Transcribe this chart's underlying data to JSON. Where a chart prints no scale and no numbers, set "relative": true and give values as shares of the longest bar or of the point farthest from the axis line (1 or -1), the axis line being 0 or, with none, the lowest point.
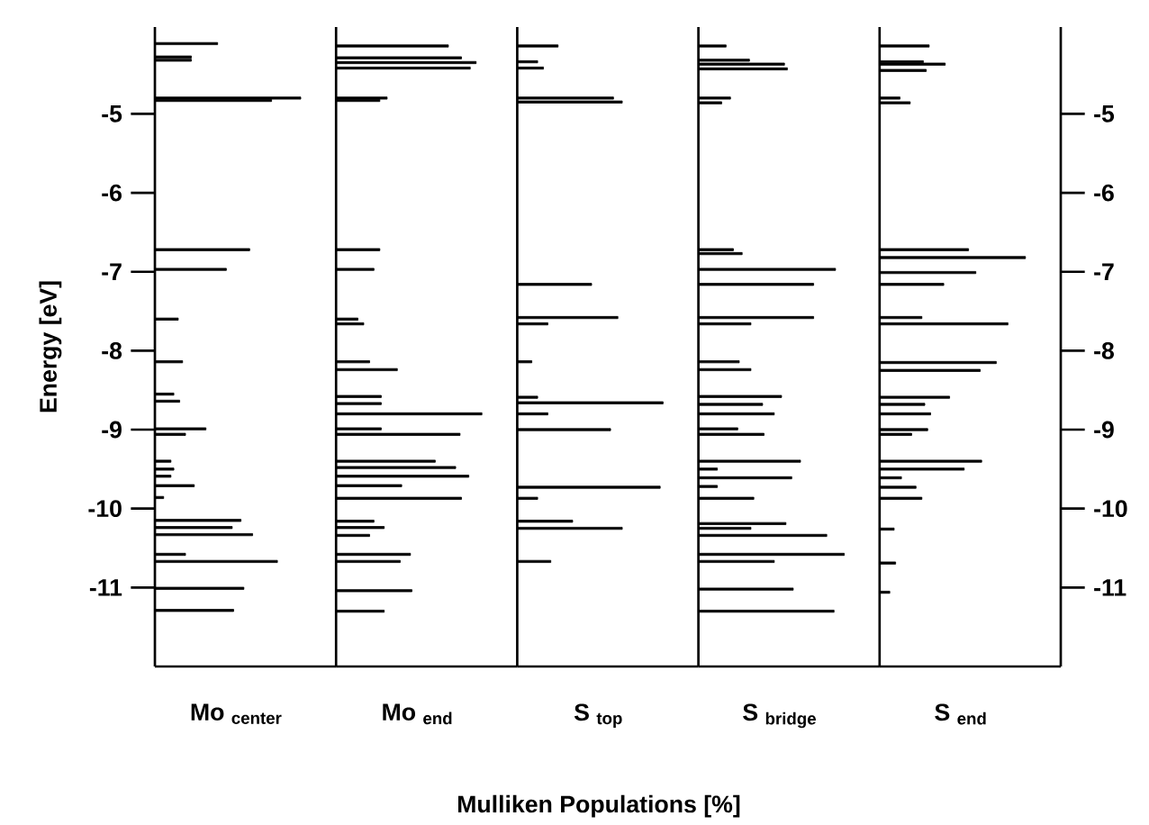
{
  "chart_data": [
    {
      "type": "bar",
      "orientation": "horizontal",
      "relative": true,
      "ylabel": "Energy [eV]",
      "ylim": [
        -12,
        -3.9
      ],
      "yticks": [
        -5,
        -6,
        -7,
        -8,
        -9,
        -10,
        -11
      ],
      "tick_labels": "y",
      "series": [
        {
          "name": "Mo $_{center}$",
          "color": "#000000",
          "x": [
            -4.11,
            -4.28,
            -4.32,
            -4.8,
            -4.83,
            -6.72,
            -6.97,
            -7.6,
            -8.14,
            -8.55,
            -8.64,
            -8.99,
            -9.06,
            -9.4,
            -9.5,
            -9.59,
            -9.71,
            -9.86,
            -10.15,
            -10.24,
            -10.33,
            -10.58,
            -10.67,
            -11.01,
            -11.29
          ],
          "values": [
            0.43,
            0.25,
            0.25,
            1,
            0.8,
            0.65,
            0.49,
            0.16,
            0.19,
            0.13,
            0.17,
            0.35,
            0.21,
            0.11,
            0.13,
            0.11,
            0.27,
            0.06,
            0.59,
            0.53,
            0.67,
            0.21,
            0.84,
            0.61,
            0.54
          ]
        }
      ]
    },
    {
      "type": "bar",
      "orientation": "horizontal",
      "relative": true,
      "ylim": [
        -12,
        -3.9
      ],
      "tick_labels": false,
      "series": [
        {
          "name": "Mo $_{end}$",
          "color": "#000000",
          "x": [
            -4.14,
            -4.29,
            -4.35,
            -4.42,
            -4.8,
            -4.83,
            -6.72,
            -6.97,
            -7.6,
            -7.66,
            -8.14,
            -8.24,
            -8.58,
            -8.67,
            -8.8,
            -8.99,
            -9.06,
            -9.4,
            -9.48,
            -9.59,
            -9.71,
            -9.87,
            -10.16,
            -10.24,
            -10.34,
            -10.58,
            -10.67,
            -11.04,
            -11.3
          ],
          "values": [
            0.77,
            0.86,
            0.96,
            0.92,
            0.35,
            0.3,
            0.3,
            0.26,
            0.15,
            0.19,
            0.23,
            0.42,
            0.31,
            0.31,
            1,
            0.31,
            0.85,
            0.68,
            0.82,
            0.91,
            0.45,
            0.86,
            0.26,
            0.33,
            0.23,
            0.51,
            0.44,
            0.52,
            0.33
          ]
        }
      ]
    },
    {
      "type": "bar",
      "orientation": "horizontal",
      "relative": true,
      "xlabel": "Mulliken Populations [%]",
      "ylim": [
        -12,
        -3.9
      ],
      "tick_labels": false,
      "series": [
        {
          "name": "S $_{top}$",
          "color": "#000000",
          "x": [
            -4.14,
            -4.34,
            -4.42,
            -4.8,
            -4.85,
            -7.16,
            -7.58,
            -7.66,
            -8.14,
            -8.59,
            -8.66,
            -8.8,
            -9.0,
            -9.73,
            -9.87,
            -10.16,
            -10.25,
            -10.67
          ],
          "values": [
            0.28,
            0.14,
            0.18,
            0.66,
            0.72,
            0.51,
            0.69,
            0.21,
            0.1,
            0.14,
            1,
            0.21,
            0.64,
            0.98,
            0.14,
            0.38,
            0.72,
            0.23
          ]
        }
      ]
    },
    {
      "type": "bar",
      "orientation": "horizontal",
      "relative": true,
      "ylim": [
        -12,
        -3.9
      ],
      "tick_labels": false,
      "series": [
        {
          "name": "S $_{bridge}$",
          "color": "#000000",
          "x": [
            -4.14,
            -4.32,
            -4.37,
            -4.43,
            -4.8,
            -4.86,
            -6.72,
            -6.77,
            -6.97,
            -7.16,
            -7.58,
            -7.66,
            -8.14,
            -8.24,
            -8.58,
            -8.68,
            -8.8,
            -8.99,
            -9.06,
            -9.4,
            -9.5,
            -9.61,
            -9.72,
            -9.87,
            -10.19,
            -10.25,
            -10.34,
            -10.58,
            -10.67,
            -11.02,
            -11.3
          ],
          "values": [
            0.19,
            0.35,
            0.59,
            0.61,
            0.22,
            0.16,
            0.24,
            0.3,
            0.94,
            0.79,
            0.79,
            0.36,
            0.28,
            0.36,
            0.57,
            0.44,
            0.52,
            0.27,
            0.45,
            0.7,
            0.13,
            0.64,
            0.13,
            0.38,
            0.6,
            0.36,
            0.88,
            1,
            0.52,
            0.65,
            0.93
          ]
        }
      ]
    },
    {
      "type": "bar",
      "orientation": "horizontal",
      "relative": true,
      "ylim": [
        -12,
        -3.9
      ],
      "y2lim": [
        -12,
        -3.9
      ],
      "y2ticks": [
        -5,
        -6,
        -7,
        -8,
        -9,
        -10,
        -11
      ],
      "tick_labels": "y2",
      "series": [
        {
          "name": "S $_{end}$",
          "color": "#000000",
          "x": [
            -4.14,
            -4.34,
            -4.37,
            -4.45,
            -4.8,
            -4.86,
            -6.72,
            -6.82,
            -7.01,
            -7.16,
            -7.58,
            -7.66,
            -8.15,
            -8.25,
            -8.59,
            -8.68,
            -8.8,
            -9.0,
            -9.06,
            -9.4,
            -9.5,
            -9.61,
            -9.73,
            -9.87,
            -10.26,
            -10.69,
            -11.06
          ],
          "values": [
            0.34,
            0.3,
            0.45,
            0.32,
            0.14,
            0.21,
            0.61,
            1,
            0.66,
            0.44,
            0.29,
            0.88,
            0.8,
            0.69,
            0.48,
            0.31,
            0.35,
            0.33,
            0.22,
            0.7,
            0.58,
            0.15,
            0.25,
            0.29,
            0.1,
            0.11,
            0.07
          ]
        }
      ]
    }
  ]
}
